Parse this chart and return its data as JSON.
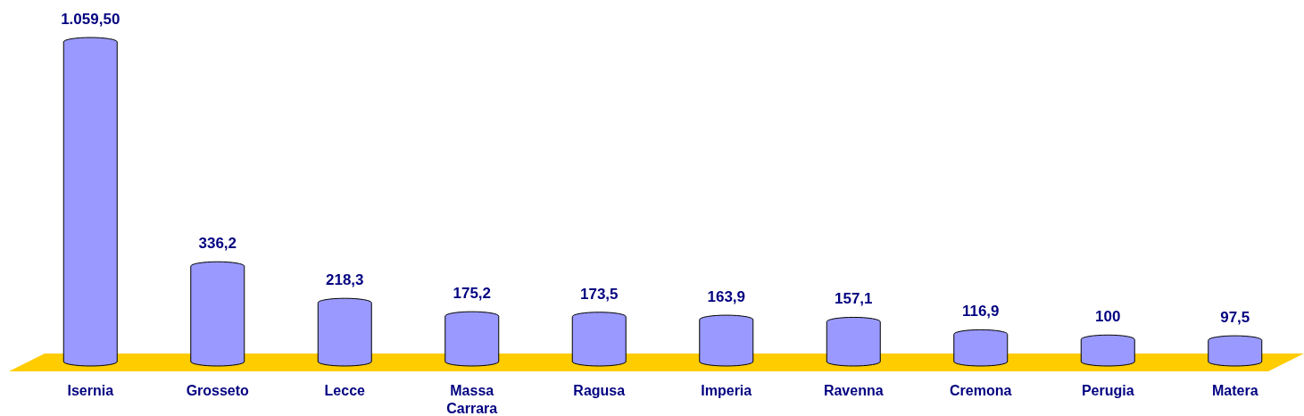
{
  "chart_data": {
    "type": "bar",
    "categories": [
      "Isernia",
      "Grosseto",
      "Lecce",
      "Massa Carrara",
      "Ragusa",
      "Imperia",
      "Ravenna",
      "Cremona",
      "Perugia",
      "Matera"
    ],
    "values": [
      1059.5,
      336.2,
      218.3,
      175.2,
      173.5,
      163.9,
      157.1,
      116.9,
      100,
      97.5
    ],
    "value_labels": [
      "1.059,50",
      "336,2",
      "218,3",
      "175,2",
      "173,5",
      "163,9",
      "157,1",
      "116,9",
      "100",
      "97,5"
    ],
    "color": "#9999ff"
  }
}
